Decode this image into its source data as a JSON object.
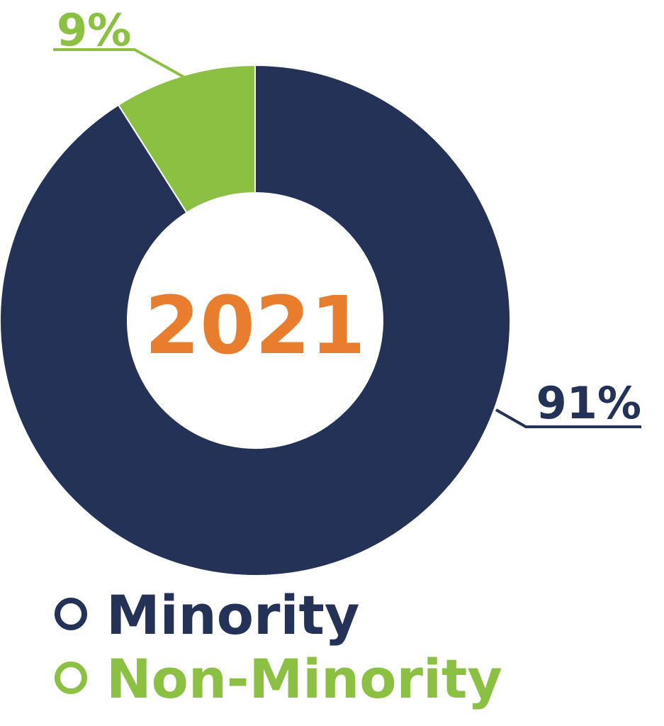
{
  "chart_data": {
    "type": "donut",
    "center_label": "2021",
    "categories": [
      "Minority",
      "Non-Minority"
    ],
    "values": [
      91,
      9
    ],
    "value_labels": [
      "91%",
      "9%"
    ],
    "colors": [
      "#233256",
      "#8bc043"
    ],
    "center_color": "#e87d2e",
    "legend": "bottom-left"
  }
}
